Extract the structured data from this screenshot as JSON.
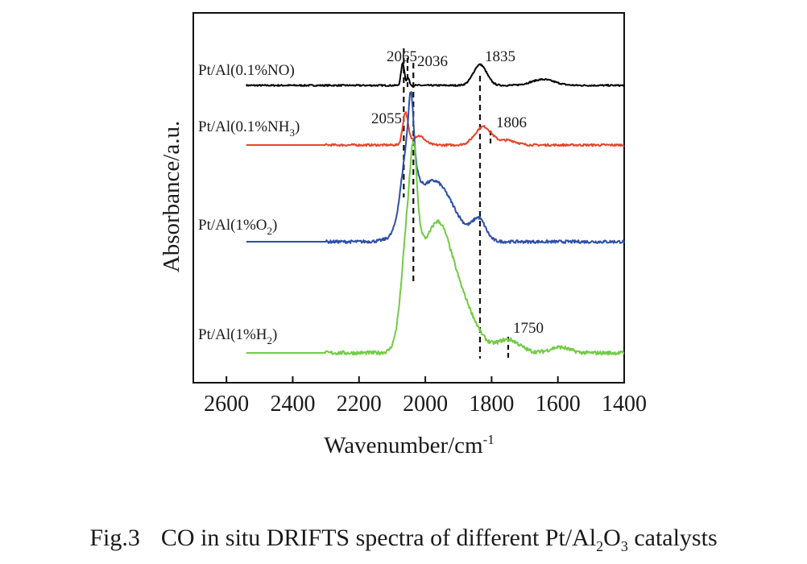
{
  "caption": {
    "prefix": "Fig.3",
    "text_before": "CO in situ DRIFTS spectra of different Pt/Al",
    "sub1": "2",
    "mid": "O",
    "sub2": "3",
    "text_after": " catalysts"
  },
  "chart_data": {
    "type": "line",
    "xlabel": "Wavenumber/cm",
    "xlabel_superscript": "-1",
    "ylabel": "Absorbance/a.u.",
    "xlim": [
      2700,
      1400
    ],
    "x_reversed": true,
    "y_ticks_shown": false,
    "x_ticks": [
      2600,
      2400,
      2200,
      2000,
      1800,
      1600,
      1400
    ],
    "x_tick_labels": [
      "2600",
      "2400",
      "2200",
      "2000",
      "1800",
      "1600",
      "1400"
    ],
    "grid": false,
    "legend": "labels placed beside each trace",
    "series": [
      {
        "name": "Pt/Al(0.1%NO)",
        "name_main": "Pt/Al(0.1%NO)",
        "name_sub": "",
        "name_tail": "",
        "color": "#000000",
        "baseline": 0,
        "noise": 0.5,
        "noise_start": 2560,
        "peaks": [
          {
            "center": 2068,
            "height": 15,
            "width": 5
          },
          {
            "center": 2052,
            "height": 5,
            "width": 4
          },
          {
            "center": 1835,
            "height": 14,
            "width": 20
          },
          {
            "center": 1645,
            "height": 4,
            "width": 35
          }
        ]
      },
      {
        "name": "Pt/Al(0.1%NH3)",
        "name_main": "Pt/Al(0.1%NH",
        "name_sub": "3",
        "name_tail": ")",
        "color": "#e8442c",
        "baseline": 0,
        "noise": 0.7,
        "noise_start": 2300,
        "peaks": [
          {
            "center": 2060,
            "height": 21,
            "width": 8
          },
          {
            "center": 2020,
            "height": 6,
            "width": 18
          },
          {
            "center": 1825,
            "height": 12,
            "width": 25
          },
          {
            "center": 1750,
            "height": 3,
            "width": 25
          }
        ]
      },
      {
        "name": "Pt/Al(1%O2)",
        "name_main": "Pt/Al(1%O",
        "name_sub": "2",
        "name_tail": ")",
        "color": "#2e4fa8",
        "baseline": 0,
        "noise": 0.9,
        "noise_start": 2300,
        "peaks": [
          {
            "center": 2052,
            "height": 45,
            "width": 20
          },
          {
            "center": 2043,
            "height": 30,
            "width": 7
          },
          {
            "center": 1975,
            "height": 36,
            "width": 58
          },
          {
            "center": 1838,
            "height": 12,
            "width": 20
          }
        ]
      },
      {
        "name": "Pt/Al(1%H2)",
        "name_main": "Pt/Al(1%H",
        "name_sub": "2",
        "name_tail": ")",
        "color": "#72cc44",
        "baseline": 0,
        "noise": 1.0,
        "noise_start": 2300,
        "peaks": [
          {
            "center": 2045,
            "height": 70,
            "width": 22
          },
          {
            "center": 2035,
            "height": 25,
            "width": 8
          },
          {
            "center": 1965,
            "height": 68,
            "width": 48
          },
          {
            "center": 1875,
            "height": 16,
            "width": 40
          },
          {
            "center": 1750,
            "height": 7,
            "width": 35
          },
          {
            "center": 1595,
            "height": 3,
            "width": 30
          }
        ]
      }
    ],
    "annotations": [
      {
        "label": "2065",
        "x": 2065
      },
      {
        "label": "2036",
        "x": 2036
      },
      {
        "label": "1835",
        "x": 1835
      },
      {
        "label": "2055",
        "x": 2055
      },
      {
        "label": "1806",
        "x": 1806
      },
      {
        "label": "1750",
        "x": 1750
      }
    ],
    "reference_lines": [
      2065,
      2036,
      1835,
      1806,
      1750
    ]
  }
}
